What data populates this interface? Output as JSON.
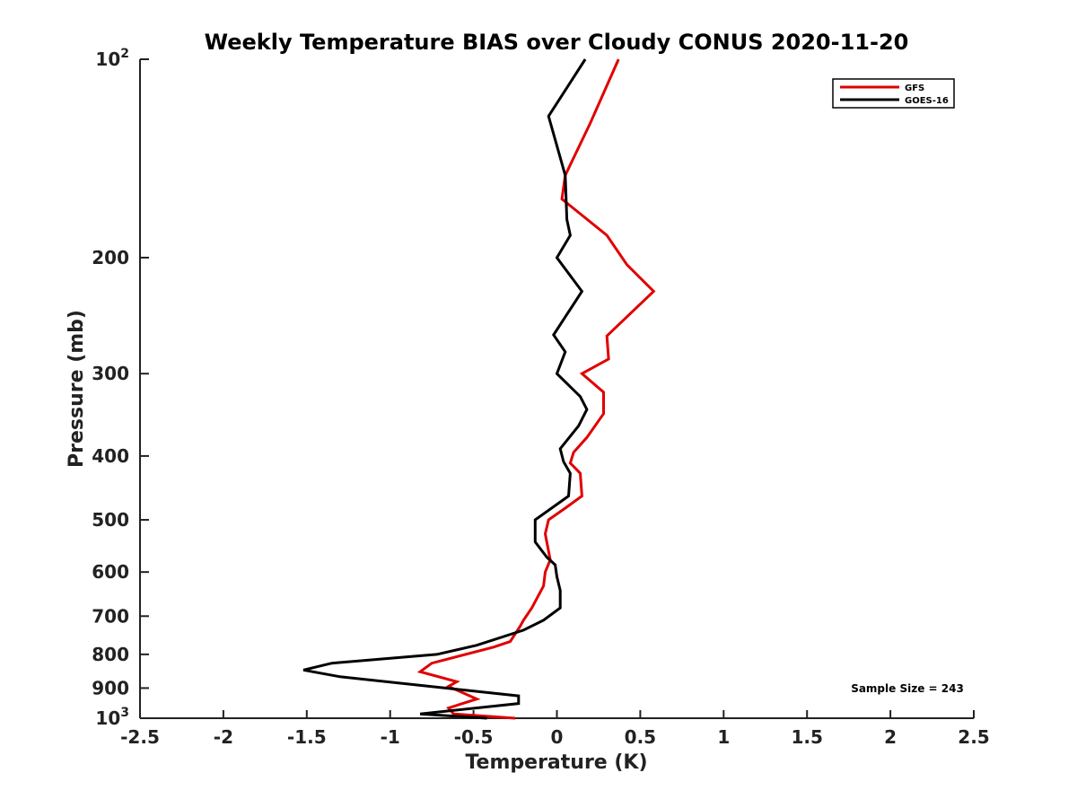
{
  "chart_data": {
    "type": "line",
    "title": "Weekly Temperature BIAS over Cloudy CONUS 2020-11-20",
    "xlabel": "Temperature (K)",
    "ylabel": "Pressure (mb)",
    "xlim": [
      -2.5,
      2.5
    ],
    "ylim": [
      100,
      1000
    ],
    "y_scale": "log",
    "y_reversed": true,
    "grid": false,
    "legend_position": "top-right",
    "x_ticks": [
      {
        "value": -2.5,
        "label": "-2.5"
      },
      {
        "value": -2,
        "label": "-2"
      },
      {
        "value": -1.5,
        "label": "-1.5"
      },
      {
        "value": -1,
        "label": "-1"
      },
      {
        "value": -0.5,
        "label": "-0.5"
      },
      {
        "value": 0,
        "label": "0"
      },
      {
        "value": 0.5,
        "label": "0.5"
      },
      {
        "value": 1,
        "label": "1"
      },
      {
        "value": 1.5,
        "label": "1.5"
      },
      {
        "value": 2,
        "label": "2"
      },
      {
        "value": 2.5,
        "label": "2.5"
      }
    ],
    "y_ticks": [
      {
        "value": 100,
        "label": "10",
        "sup": "2"
      },
      {
        "value": 200,
        "label": "200",
        "sup": ""
      },
      {
        "value": 300,
        "label": "300",
        "sup": ""
      },
      {
        "value": 400,
        "label": "400",
        "sup": ""
      },
      {
        "value": 500,
        "label": "500",
        "sup": ""
      },
      {
        "value": 600,
        "label": "600",
        "sup": ""
      },
      {
        "value": 700,
        "label": "700",
        "sup": ""
      },
      {
        "value": 800,
        "label": "800",
        "sup": ""
      },
      {
        "value": 900,
        "label": "900",
        "sup": ""
      },
      {
        "value": 1000,
        "label": "10",
        "sup": "3"
      }
    ],
    "series": [
      {
        "name": "GFS",
        "color": "#e00000",
        "points": [
          [
            0.37,
            100
          ],
          [
            0.2,
            125
          ],
          [
            0.05,
            150
          ],
          [
            0.03,
            163
          ],
          [
            0.3,
            185
          ],
          [
            0.42,
            205
          ],
          [
            0.58,
            225
          ],
          [
            0.3,
            263
          ],
          [
            0.31,
            285
          ],
          [
            0.15,
            300
          ],
          [
            0.28,
            320
          ],
          [
            0.28,
            345
          ],
          [
            0.18,
            375
          ],
          [
            0.1,
            395
          ],
          [
            0.08,
            410
          ],
          [
            0.14,
            425
          ],
          [
            0.15,
            460
          ],
          [
            0.05,
            480
          ],
          [
            -0.05,
            500
          ],
          [
            -0.07,
            525
          ],
          [
            -0.04,
            575
          ],
          [
            -0.07,
            600
          ],
          [
            -0.08,
            630
          ],
          [
            -0.15,
            680
          ],
          [
            -0.2,
            710
          ],
          [
            -0.22,
            725
          ],
          [
            -0.28,
            765
          ],
          [
            -0.38,
            780
          ],
          [
            -0.75,
            825
          ],
          [
            -0.82,
            850
          ],
          [
            -0.6,
            880
          ],
          [
            -0.65,
            895
          ],
          [
            -0.48,
            935
          ],
          [
            -0.65,
            965
          ],
          [
            -0.62,
            985
          ],
          [
            -0.25,
            1000
          ]
        ]
      },
      {
        "name": "GOES-16",
        "color": "#000000",
        "points": [
          [
            0.17,
            100
          ],
          [
            -0.05,
            122
          ],
          [
            0.05,
            150
          ],
          [
            0.06,
            175
          ],
          [
            0.08,
            185
          ],
          [
            0.0,
            200
          ],
          [
            0.15,
            225
          ],
          [
            -0.02,
            262
          ],
          [
            0.05,
            278
          ],
          [
            0.0,
            300
          ],
          [
            0.14,
            325
          ],
          [
            0.18,
            340
          ],
          [
            0.13,
            360
          ],
          [
            0.02,
            390
          ],
          [
            0.04,
            408
          ],
          [
            0.08,
            425
          ],
          [
            0.07,
            460
          ],
          [
            -0.13,
            500
          ],
          [
            -0.13,
            540
          ],
          [
            -0.06,
            570
          ],
          [
            -0.01,
            585
          ],
          [
            0.0,
            610
          ],
          [
            0.02,
            640
          ],
          [
            0.02,
            680
          ],
          [
            -0.08,
            710
          ],
          [
            -0.2,
            735
          ],
          [
            -0.48,
            775
          ],
          [
            -0.72,
            800
          ],
          [
            -1.35,
            825
          ],
          [
            -1.52,
            845
          ],
          [
            -1.3,
            865
          ],
          [
            -0.23,
            925
          ],
          [
            -0.23,
            950
          ],
          [
            -0.82,
            985
          ],
          [
            -0.42,
            1000
          ]
        ]
      }
    ],
    "annotation": "Sample Size = 243"
  }
}
